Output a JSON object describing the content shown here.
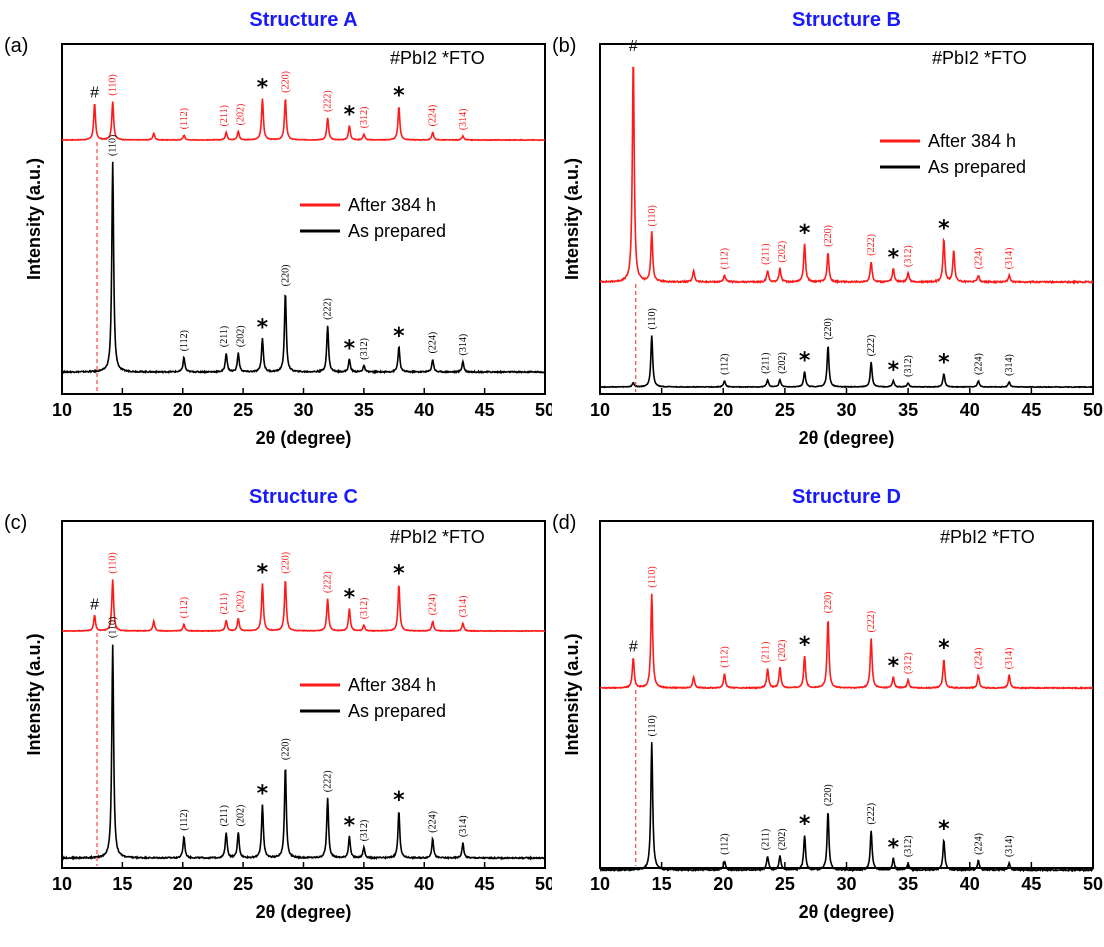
{
  "colors": {
    "after": "#ff1a1a",
    "prepared": "#000000",
    "title": "#1a1aff"
  },
  "chart_data": [
    {
      "type": "line",
      "panel_label": "(a)",
      "title": "Structure A",
      "xlabel": "2θ (degree)",
      "ylabel": "Intensity (a.u.)",
      "xlim": [
        10,
        50
      ],
      "xticks": [
        "10",
        "15",
        "20",
        "25",
        "30",
        "35",
        "40",
        "45",
        "50"
      ],
      "legend": {
        "position": "center-right",
        "entries": [
          "After 384 h",
          "As prepared"
        ]
      },
      "impurity_legend": "#PbI2  *FTO",
      "x": [
        12.7,
        14.2,
        17.6,
        20.1,
        23.6,
        24.6,
        26.6,
        28.5,
        32.0,
        33.8,
        35.0,
        37.9,
        40.7,
        43.2
      ],
      "series": [
        {
          "name": "After 384 h",
          "values": [
            0.38,
            0.4,
            0.07,
            0.05,
            0.08,
            0.09,
            0.43,
            0.43,
            0.23,
            0.15,
            0.06,
            0.35,
            0.08,
            0.04
          ]
        },
        {
          "name": "As prepared",
          "values": [
            0.0,
            1.0,
            0.0,
            0.07,
            0.09,
            0.09,
            0.16,
            0.38,
            0.22,
            0.06,
            0.03,
            0.12,
            0.06,
            0.05
          ]
        }
      ],
      "hkl_labels": [
        "(110)",
        "(112)",
        "(211)",
        "(202)",
        "(220)",
        "(222)",
        "(312)",
        "(224)",
        "(314)"
      ]
    },
    {
      "type": "line",
      "panel_label": "(b)",
      "title": "Structure B",
      "xlabel": "2θ (degree)",
      "ylabel": "Intensity (a.u.)",
      "xlim": [
        10,
        50
      ],
      "xticks": [
        "10",
        "15",
        "20",
        "25",
        "30",
        "35",
        "40",
        "45",
        "50"
      ],
      "legend": {
        "position": "top-right",
        "entries": [
          "After 384 h",
          "As prepared"
        ]
      },
      "impurity_legend": "#PbI2  *FTO",
      "x": [
        12.7,
        14.2,
        17.6,
        20.1,
        23.6,
        24.6,
        26.6,
        28.5,
        32.0,
        33.8,
        35.0,
        37.9,
        38.7,
        40.7,
        43.2
      ],
      "series": [
        {
          "name": "After 384 h",
          "values": [
            1.0,
            0.22,
            0.05,
            0.03,
            0.05,
            0.06,
            0.17,
            0.13,
            0.09,
            0.06,
            0.04,
            0.19,
            0.14,
            0.03,
            0.03
          ]
        },
        {
          "name": "As prepared",
          "values": [
            0.04,
            0.5,
            0.0,
            0.06,
            0.07,
            0.07,
            0.15,
            0.4,
            0.24,
            0.06,
            0.04,
            0.13,
            0.0,
            0.06,
            0.05
          ]
        }
      ],
      "hkl_labels": [
        "(110)",
        "(112)",
        "(211)",
        "(202)",
        "(220)",
        "(222)",
        "(312)",
        "(224)",
        "(314)"
      ]
    },
    {
      "type": "line",
      "panel_label": "(c)",
      "title": "Structure C",
      "xlabel": "2θ (degree)",
      "ylabel": "Intensity (a.u.)",
      "xlim": [
        10,
        50
      ],
      "xticks": [
        "10",
        "15",
        "20",
        "25",
        "30",
        "35",
        "40",
        "45",
        "50"
      ],
      "legend": {
        "position": "center-right",
        "entries": [
          "After 384 h",
          "As prepared"
        ]
      },
      "impurity_legend": "#PbI2  *FTO",
      "x": [
        12.7,
        14.2,
        17.6,
        20.1,
        23.6,
        24.6,
        26.6,
        28.5,
        32.0,
        33.8,
        35.0,
        37.9,
        40.7,
        43.2
      ],
      "series": [
        {
          "name": "After 384 h",
          "values": [
            0.16,
            0.53,
            0.1,
            0.07,
            0.11,
            0.13,
            0.49,
            0.53,
            0.33,
            0.23,
            0.06,
            0.48,
            0.1,
            0.08
          ]
        },
        {
          "name": "As prepared",
          "values": [
            0.0,
            1.0,
            0.0,
            0.1,
            0.12,
            0.12,
            0.25,
            0.43,
            0.28,
            0.1,
            0.05,
            0.22,
            0.09,
            0.07
          ]
        }
      ],
      "hkl_labels": [
        "(110)",
        "(112)",
        "(211)",
        "(202)",
        "(220)",
        "(222)",
        "(312)",
        "(224)",
        "(314)"
      ]
    },
    {
      "type": "line",
      "panel_label": "(d)",
      "title": "Structure D",
      "xlabel": "2θ (degree)",
      "ylabel": "Intensity (a.u.)",
      "xlim": [
        10,
        50
      ],
      "xticks": [
        "10",
        "15",
        "20",
        "25",
        "30",
        "35",
        "40",
        "45",
        "50"
      ],
      "legend": {
        "position": "top-right",
        "entries": [
          "After 384 h",
          "As prepared"
        ]
      },
      "impurity_legend": "#PbI2  *FTO",
      "x": [
        12.7,
        14.2,
        17.6,
        20.1,
        23.6,
        24.6,
        26.6,
        28.5,
        32.0,
        33.8,
        35.0,
        37.9,
        40.7,
        43.2
      ],
      "series": [
        {
          "name": "After 384 h",
          "values": [
            0.19,
            0.59,
            0.07,
            0.09,
            0.12,
            0.13,
            0.2,
            0.43,
            0.31,
            0.07,
            0.05,
            0.18,
            0.08,
            0.08
          ]
        },
        {
          "name": "As prepared",
          "values": [
            0.0,
            0.55,
            0.0,
            0.04,
            0.06,
            0.06,
            0.15,
            0.25,
            0.17,
            0.05,
            0.03,
            0.13,
            0.04,
            0.03
          ]
        }
      ],
      "hkl_labels": [
        "(110)",
        "(112)",
        "(211)",
        "(202)",
        "(220)",
        "(222)",
        "(312)",
        "(224)",
        "(314)"
      ]
    }
  ]
}
